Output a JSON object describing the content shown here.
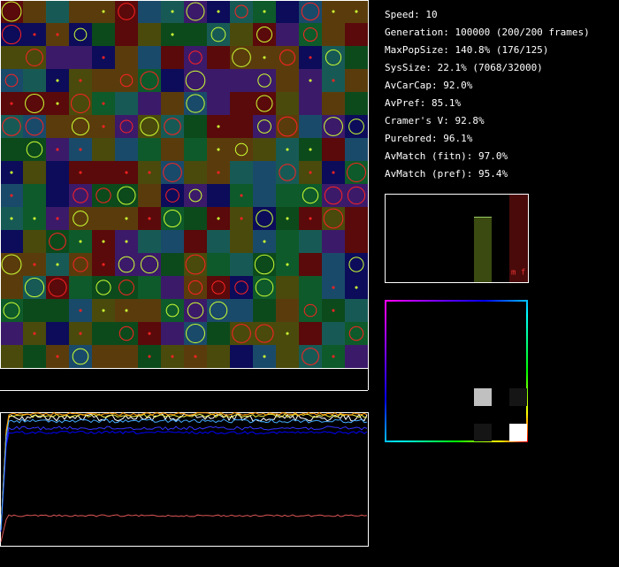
{
  "stats": [
    "Speed: 10",
    "Generation: 100000 (200/200 frames)",
    "MaxPopSize: 140.8% (176/125)",
    "SysSize: 22.1% (7068/32000)",
    "AvCarCap: 92.0%",
    "AvPref: 85.1%",
    "Cramer's V: 92.8%",
    "Purebred: 96.1%",
    "AvMatch (fitn): 97.0%",
    "AvMatch (pref): 95.4%"
  ],
  "bar_panel": {
    "label": "m f"
  }
}
